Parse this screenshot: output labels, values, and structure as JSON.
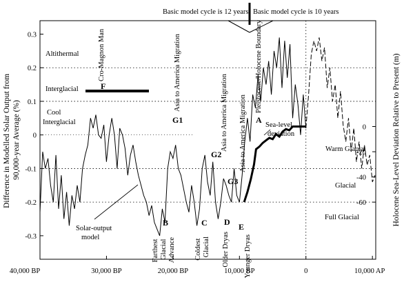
{
  "chart_data": {
    "type": "line",
    "title": "",
    "xlabel": "",
    "x_ticks": [
      {
        "year": -40000,
        "label": "40,000 BP"
      },
      {
        "year": -30000,
        "label": "30,000 BP"
      },
      {
        "year": -20000,
        "label": "20,000 BP"
      },
      {
        "year": -10000,
        "label": "10,000 BP"
      },
      {
        "year": 0,
        "label": "0"
      },
      {
        "year": 10000,
        "label": "10,000 AP"
      }
    ],
    "xlim": [
      -40000,
      10500
    ],
    "ylabel_left": "Difference in Modelled Solar Output  from 90,000-year Average (%)",
    "ylim_left": [
      -0.37,
      0.34
    ],
    "y_ticks_left": [
      {
        "v": 0.3,
        "label": "0.3"
      },
      {
        "v": 0.2,
        "label": "0.2"
      },
      {
        "v": 0.1,
        "label": "0.1"
      },
      {
        "v": 0,
        "label": "0"
      },
      {
        "v": -0.1,
        "label": "-0.1"
      },
      {
        "v": -0.2,
        "label": "-0.2"
      },
      {
        "v": -0.3,
        "label": "-0.3"
      }
    ],
    "ylabel_right": "Holocene Sea-Level Deviation Relative to Present (m)",
    "y_ticks_right": [
      {
        "v": 0,
        "label": "0"
      },
      {
        "v": -20,
        "label": "-20"
      },
      {
        "v": -40,
        "label": "-40"
      },
      {
        "v": -60,
        "label": "-60"
      }
    ],
    "grid": "dotted horizontal at 0.2, 0.1, -0.1, -0.2; dotted vertical at 0",
    "series": [
      {
        "name": "Solar-output model",
        "x": [
          -40000,
          -39600,
          -39200,
          -38800,
          -38400,
          -38000,
          -37600,
          -37200,
          -36800,
          -36400,
          -36000,
          -35600,
          -35200,
          -34800,
          -34400,
          -34000,
          -33600,
          -33200,
          -32800,
          -32400,
          -32000,
          -31600,
          -31200,
          -30800,
          -30400,
          -30000,
          -29600,
          -29200,
          -28800,
          -28400,
          -28000,
          -27600,
          -27200,
          -26800,
          -26400,
          -26000,
          -25600,
          -25200,
          -24800,
          -24400,
          -24000,
          -23600,
          -23200,
          -22800,
          -22400,
          -22000,
          -21600,
          -21200,
          -20800,
          -20400,
          -20000,
          -19600,
          -19200,
          -18800,
          -18400,
          -18000,
          -17600,
          -17200,
          -16800,
          -16400,
          -16000,
          -15600,
          -15200,
          -14800,
          -14400,
          -14000,
          -13600,
          -13200,
          -12800,
          -12400,
          -12000,
          -11600,
          -11200,
          -10800,
          -10400,
          -10000,
          -9600,
          -9200,
          -8800,
          -8400,
          -8000,
          -7600,
          -7200,
          -6800,
          -6400,
          -6000,
          -5600,
          -5200,
          -4800,
          -4400,
          -4000,
          -3600,
          -3200,
          -2800,
          -2400,
          -2000,
          -1600,
          -1200,
          -800,
          -400,
          0
        ],
        "values": [
          -0.23,
          -0.05,
          -0.1,
          -0.07,
          -0.15,
          -0.2,
          -0.06,
          -0.22,
          -0.12,
          -0.25,
          -0.17,
          -0.27,
          -0.18,
          -0.22,
          -0.15,
          -0.2,
          -0.1,
          -0.06,
          -0.03,
          0.05,
          0.02,
          0.06,
          0.0,
          -0.01,
          0.03,
          -0.08,
          0.0,
          0.05,
          0.0,
          -0.1,
          0.02,
          0.0,
          -0.04,
          -0.12,
          -0.06,
          -0.03,
          -0.08,
          -0.12,
          -0.15,
          -0.18,
          -0.2,
          -0.24,
          -0.21,
          -0.26,
          -0.28,
          -0.3,
          -0.22,
          -0.26,
          -0.1,
          -0.05,
          -0.07,
          -0.03,
          -0.1,
          -0.12,
          -0.16,
          -0.2,
          -0.23,
          -0.15,
          -0.2,
          -0.27,
          -0.22,
          -0.1,
          -0.06,
          -0.14,
          -0.18,
          -0.08,
          -0.2,
          -0.25,
          -0.2,
          -0.13,
          -0.15,
          -0.18,
          -0.2,
          -0.1,
          -0.18,
          -0.2,
          -0.12,
          -0.02,
          0.05,
          -0.02,
          0.12,
          0.08,
          0.18,
          0.1,
          0.2,
          0.15,
          0.22,
          0.12,
          0.25,
          0.2,
          0.29,
          0.14,
          0.28,
          0.17,
          0.27,
          0.05,
          0.15,
          0.09,
          0.0,
          0.12,
          0.02
        ]
      },
      {
        "name": "Solar-output model (future)",
        "x": [
          0,
          400,
          800,
          1200,
          1600,
          2000,
          2400,
          2800,
          3200,
          3600,
          4000,
          4400,
          4800,
          5200,
          5600,
          6000,
          6400,
          6800,
          7200,
          7600,
          8000,
          8400,
          8800,
          9200,
          9600,
          10000,
          10400
        ],
        "values": [
          0.02,
          0.12,
          0.24,
          0.28,
          0.25,
          0.29,
          0.22,
          0.26,
          0.14,
          0.2,
          0.1,
          0.15,
          0.05,
          0.13,
          0.03,
          -0.02,
          0.05,
          -0.05,
          0.02,
          -0.08,
          -0.02,
          -0.1,
          -0.03,
          -0.09,
          -0.06,
          -0.14,
          -0.12
        ]
      },
      {
        "name": "Sea-level deviation",
        "x": [
          -9300,
          -8800,
          -8300,
          -7800,
          -7500,
          -7000,
          -6500,
          -6000,
          -5500,
          -5000,
          -4500,
          -4000,
          -3500,
          -3000,
          -2500,
          -2000,
          -1500,
          -1000,
          -500,
          0
        ],
        "values": [
          -60,
          -52,
          -42,
          -30,
          -18,
          -16,
          -13,
          -11,
          -9,
          -10,
          -6,
          -8,
          -4,
          -2,
          -3,
          0,
          0,
          0,
          0,
          0
        ]
      }
    ],
    "bands": [
      {
        "label": "Altithermal"
      },
      {
        "label": "Interglacial"
      },
      {
        "label": "Cool Interglacial"
      },
      {
        "label": "Warm Glacial"
      },
      {
        "label": "Glacial"
      },
      {
        "label": "Full Glacial"
      }
    ],
    "annotations": {
      "model_cycle_12": "Basic model cycle is 12 years",
      "model_cycle_10": "Basic model cycle is 10 years",
      "cro_magnon": "Cro-Magnon Man",
      "F": "F",
      "asia_migration": "Asia to America Migration",
      "G1": "G1",
      "G2": "G2",
      "G3": "G3",
      "pleistocene": "Pleistocene/Holocene Boundary",
      "A": "A",
      "B": "B",
      "C": "C",
      "D": "D",
      "E": "E",
      "farthest_glacial": [
        "Farthest",
        "Glacial",
        "Advance"
      ],
      "coldest_glacial": [
        "Coldest",
        "Glacial"
      ],
      "older_dryas": "Older Dryas",
      "younger_dryas": "Younger Dryas",
      "solar_output_model": [
        "Solar-output",
        "model"
      ],
      "sea_level_deviation": [
        "Sea-level",
        "deviation"
      ]
    }
  }
}
